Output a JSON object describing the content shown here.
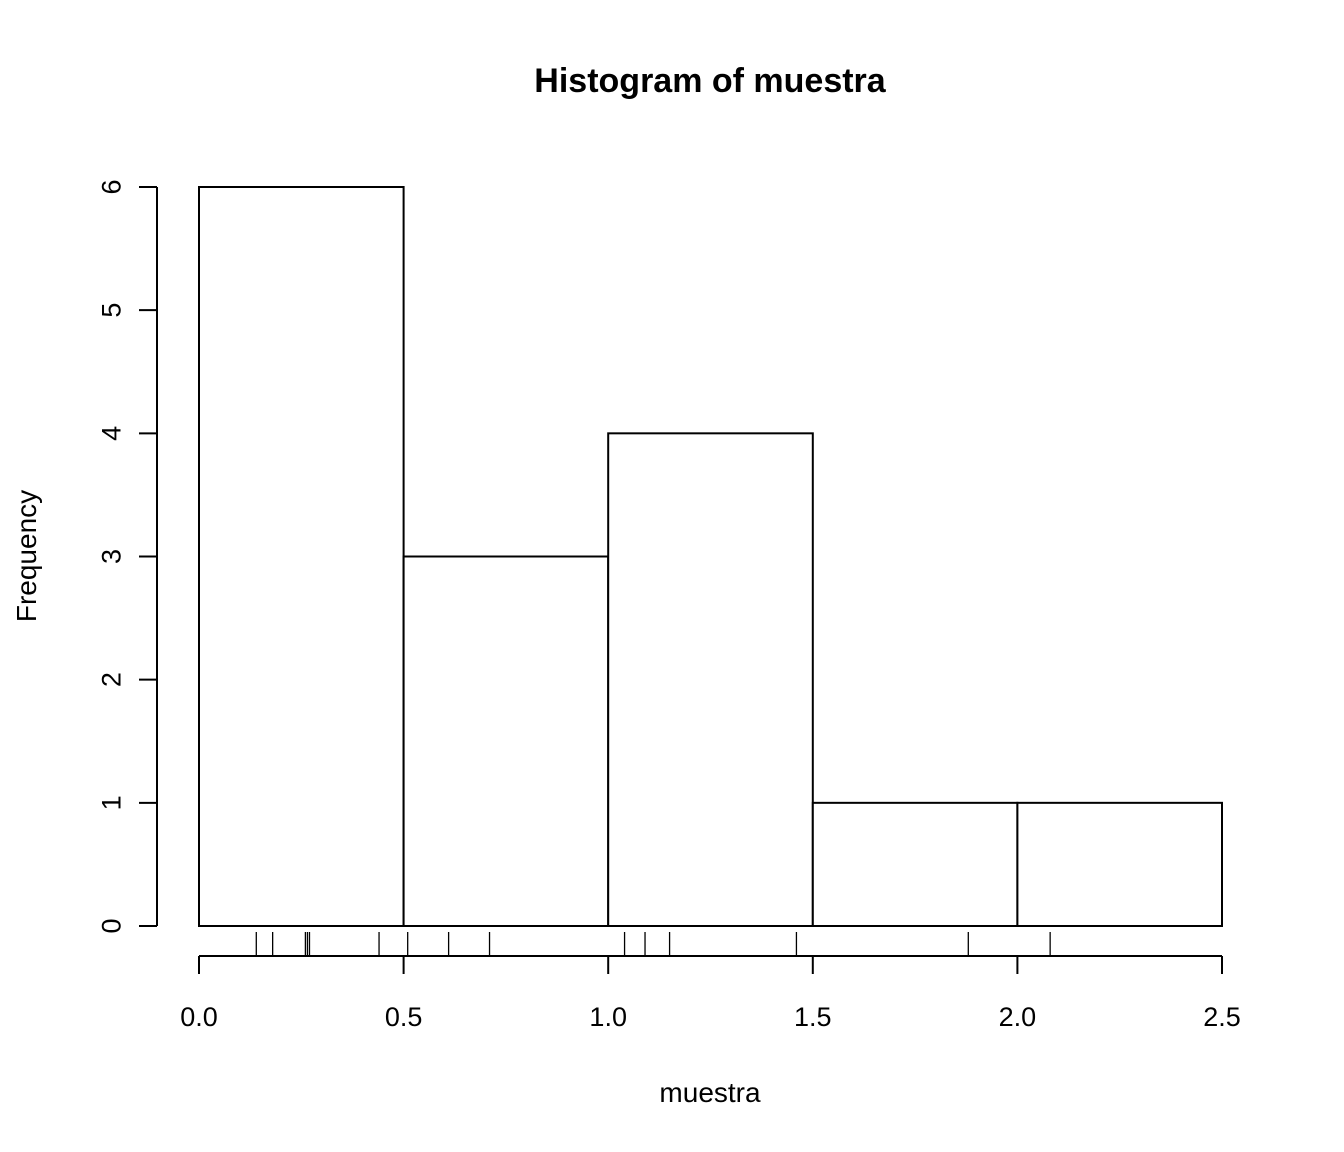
{
  "chart_data": {
    "type": "bar",
    "title": "Histogram of muestra",
    "xlabel": "muestra",
    "ylabel": "Frequency",
    "bins": [
      {
        "start": 0.0,
        "end": 0.5,
        "count": 6
      },
      {
        "start": 0.5,
        "end": 1.0,
        "count": 3
      },
      {
        "start": 1.0,
        "end": 1.5,
        "count": 4
      },
      {
        "start": 1.5,
        "end": 2.0,
        "count": 1
      },
      {
        "start": 2.0,
        "end": 2.5,
        "count": 1
      }
    ],
    "rug": [
      0.14,
      0.18,
      0.26,
      0.265,
      0.27,
      0.44,
      0.51,
      0.61,
      0.71,
      1.04,
      1.09,
      1.15,
      1.46,
      1.88,
      2.08
    ],
    "xlim": [
      0.0,
      2.5
    ],
    "ylim": [
      0,
      6
    ],
    "x_ticks": [
      "0.0",
      "0.5",
      "1.0",
      "1.5",
      "2.0",
      "2.5"
    ],
    "y_ticks": [
      "0",
      "1",
      "2",
      "3",
      "4",
      "5",
      "6"
    ],
    "grid": false,
    "legend": "none"
  }
}
